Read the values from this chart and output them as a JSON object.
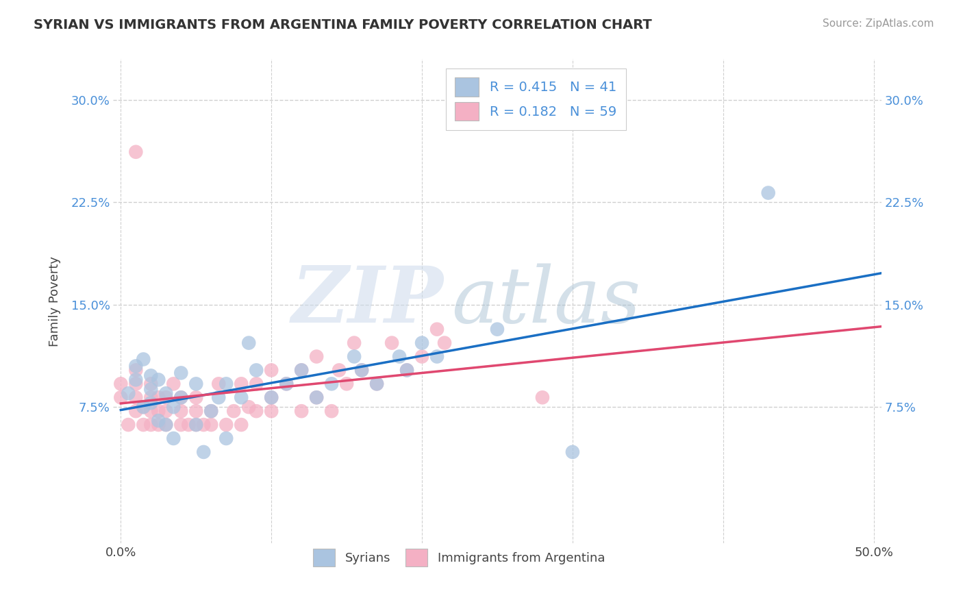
{
  "title": "SYRIAN VS IMMIGRANTS FROM ARGENTINA FAMILY POVERTY CORRELATION CHART",
  "source": "Source: ZipAtlas.com",
  "ylabel": "Family Poverty",
  "xlim": [
    -0.005,
    0.505
  ],
  "ylim": [
    -0.025,
    0.33
  ],
  "xticks": [
    0.0,
    0.1,
    0.2,
    0.3,
    0.4,
    0.5
  ],
  "xticklabels": [
    "0.0%",
    "",
    "",
    "",
    "",
    "50.0%"
  ],
  "ytick_positions": [
    0.075,
    0.15,
    0.225,
    0.3
  ],
  "yticklabels": [
    "7.5%",
    "15.0%",
    "22.5%",
    "30.0%"
  ],
  "syrian_color": "#aac4e0",
  "argentina_color": "#f4b0c4",
  "syrian_line_color": "#1a6fc4",
  "argentina_line_color": "#e04870",
  "dash_color": "#c8c8c8",
  "background_color": "#ffffff",
  "grid_color": "#d0d0d0",
  "title_color": "#333333",
  "source_color": "#999999",
  "tick_color": "#4a90d9",
  "label_color": "#444444",
  "watermark_zip_color": "#ccdaeb",
  "watermark_atlas_color": "#a0bcd0",
  "syrians_x": [
    0.005,
    0.01,
    0.01,
    0.015,
    0.015,
    0.02,
    0.02,
    0.02,
    0.025,
    0.025,
    0.03,
    0.03,
    0.035,
    0.035,
    0.04,
    0.04,
    0.05,
    0.05,
    0.055,
    0.06,
    0.065,
    0.07,
    0.07,
    0.08,
    0.085,
    0.09,
    0.1,
    0.11,
    0.12,
    0.13,
    0.14,
    0.155,
    0.16,
    0.17,
    0.185,
    0.19,
    0.2,
    0.21,
    0.25,
    0.3,
    0.43
  ],
  "syrians_y": [
    0.085,
    0.095,
    0.105,
    0.075,
    0.11,
    0.078,
    0.088,
    0.098,
    0.065,
    0.095,
    0.062,
    0.085,
    0.052,
    0.075,
    0.082,
    0.1,
    0.062,
    0.092,
    0.042,
    0.072,
    0.082,
    0.052,
    0.092,
    0.082,
    0.122,
    0.102,
    0.082,
    0.092,
    0.102,
    0.082,
    0.092,
    0.112,
    0.102,
    0.092,
    0.112,
    0.102,
    0.122,
    0.112,
    0.132,
    0.042,
    0.232
  ],
  "argentina_x": [
    0.0,
    0.0,
    0.005,
    0.01,
    0.01,
    0.01,
    0.01,
    0.015,
    0.015,
    0.02,
    0.02,
    0.02,
    0.02,
    0.025,
    0.025,
    0.025,
    0.03,
    0.03,
    0.03,
    0.035,
    0.04,
    0.04,
    0.04,
    0.045,
    0.05,
    0.05,
    0.05,
    0.055,
    0.06,
    0.06,
    0.065,
    0.07,
    0.075,
    0.08,
    0.08,
    0.085,
    0.09,
    0.09,
    0.1,
    0.1,
    0.1,
    0.11,
    0.12,
    0.12,
    0.13,
    0.13,
    0.14,
    0.145,
    0.15,
    0.155,
    0.16,
    0.17,
    0.18,
    0.19,
    0.2,
    0.21,
    0.215,
    0.01,
    0.28
  ],
  "argentina_y": [
    0.082,
    0.092,
    0.062,
    0.072,
    0.082,
    0.092,
    0.102,
    0.062,
    0.075,
    0.062,
    0.072,
    0.082,
    0.092,
    0.062,
    0.072,
    0.082,
    0.062,
    0.072,
    0.082,
    0.092,
    0.062,
    0.072,
    0.082,
    0.062,
    0.062,
    0.072,
    0.082,
    0.062,
    0.062,
    0.072,
    0.092,
    0.062,
    0.072,
    0.062,
    0.092,
    0.075,
    0.072,
    0.092,
    0.072,
    0.082,
    0.102,
    0.092,
    0.072,
    0.102,
    0.082,
    0.112,
    0.072,
    0.102,
    0.092,
    0.122,
    0.102,
    0.092,
    0.122,
    0.102,
    0.112,
    0.132,
    0.122,
    0.262,
    0.082
  ]
}
